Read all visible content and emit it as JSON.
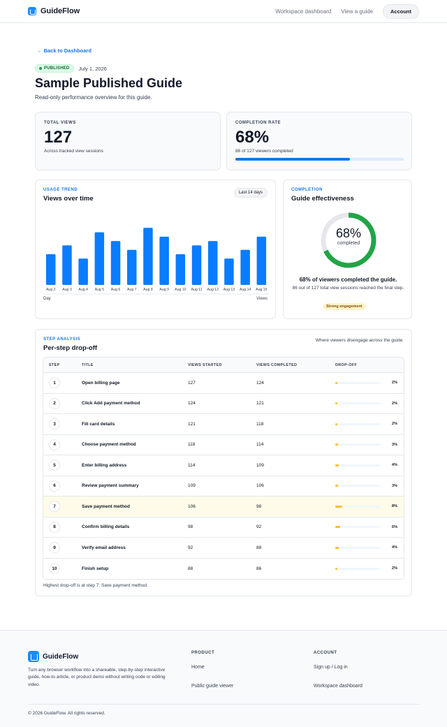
{
  "header": {
    "brand": "GuideFlow",
    "nav": [
      "Workspace dashboard",
      "View a guide"
    ],
    "account": "Account"
  },
  "page": {
    "back": "← Back to Dashboard",
    "status": "PUBLISHED",
    "date": "July 1, 2026",
    "title": "Sample Published Guide",
    "subtitle": "Read-only performance overview for this guide."
  },
  "stats": {
    "views_label": "TOTAL VIEWS",
    "views_value": "127",
    "views_note": "Across tracked view sessions",
    "completion_label": "COMPLETION RATE",
    "completion_value": "68%",
    "completion_note": "86 of 127 viewers completed",
    "completion_progress": 0.68
  },
  "trend": {
    "eyebrow": "USAGE TREND",
    "title": "Views over time",
    "range": "Last 14 days",
    "x_axis_label": "Day",
    "y_axis_label": "Views"
  },
  "chart_data": {
    "type": "bar",
    "categories": [
      "Aug 2",
      "Aug 3",
      "Aug 4",
      "Aug 5",
      "Aug 6",
      "Aug 7",
      "Aug 8",
      "Aug 9",
      "Aug 10",
      "Aug 11",
      "Aug 12",
      "Aug 13",
      "Aug 14",
      "Aug 15"
    ],
    "values": [
      7,
      9,
      6,
      12,
      10,
      8,
      13,
      11,
      7,
      9,
      10,
      6,
      8,
      11
    ],
    "xlabel": "Day",
    "ylabel": "Views",
    "ylim": [
      0,
      14
    ],
    "color": "#0a7cff",
    "grid": false
  },
  "effectiveness": {
    "eyebrow": "COMPLETION",
    "title": "Guide effectiveness",
    "pct": "68%",
    "pct_value": 0.68,
    "pct_label": "completed",
    "headline": "68% of viewers completed the guide.",
    "detail": "86 out of 127 total view sessions reached the final step.",
    "tag": "Strong engagement",
    "ring_color": "#22a447",
    "track_color": "#e5e7eb"
  },
  "steps": {
    "eyebrow": "STEP ANALYSIS",
    "title": "Per-step drop-off",
    "note": "Where viewers disengage across the guide.",
    "columns": [
      "STEP",
      "TITLE",
      "VIEWS STARTED",
      "VIEWS COMPLETED",
      "DROP-OFF"
    ],
    "rows": [
      {
        "step": "1",
        "title": "Open billing page",
        "started": "127",
        "completed": "124",
        "drop": "2%",
        "drop_value": 0.02
      },
      {
        "step": "2",
        "title": "Click Add payment method",
        "started": "124",
        "completed": "121",
        "drop": "2%",
        "drop_value": 0.02
      },
      {
        "step": "3",
        "title": "Fill card details",
        "started": "121",
        "completed": "118",
        "drop": "2%",
        "drop_value": 0.02
      },
      {
        "step": "4",
        "title": "Choose payment method",
        "started": "118",
        "completed": "114",
        "drop": "3%",
        "drop_value": 0.03
      },
      {
        "step": "5",
        "title": "Enter billing address",
        "started": "114",
        "completed": "109",
        "drop": "4%",
        "drop_value": 0.04
      },
      {
        "step": "6",
        "title": "Review payment summary",
        "started": "109",
        "completed": "106",
        "drop": "3%",
        "drop_value": 0.03
      },
      {
        "step": "7",
        "title": "Save payment method",
        "started": "106",
        "completed": "98",
        "drop": "8%",
        "drop_value": 0.08
      },
      {
        "step": "8",
        "title": "Confirm billing details",
        "started": "98",
        "completed": "92",
        "drop": "6%",
        "drop_value": 0.06
      },
      {
        "step": "9",
        "title": "Verify email address",
        "started": "92",
        "completed": "88",
        "drop": "4%",
        "drop_value": 0.04
      },
      {
        "step": "10",
        "title": "Finish setup",
        "started": "88",
        "completed": "86",
        "drop": "2%",
        "drop_value": 0.02
      }
    ],
    "highlight_step": "7",
    "summary": "Highest drop-off is at step 7: Save payment method."
  },
  "footer": {
    "brand": "GuideFlow",
    "description": "Turn any browser workflow into a shareable, step-by-step interactive guide, how-to article, or product demo without writing code or editing video.",
    "product_head": "PRODUCT",
    "product_links": [
      "Home",
      "Public guide viewer"
    ],
    "account_head": "ACCOUNT",
    "account_links": [
      "Sign up / Log in",
      "Workspace dashboard"
    ],
    "copyright": "© 2026 GuideFlow. All rights reserved."
  }
}
